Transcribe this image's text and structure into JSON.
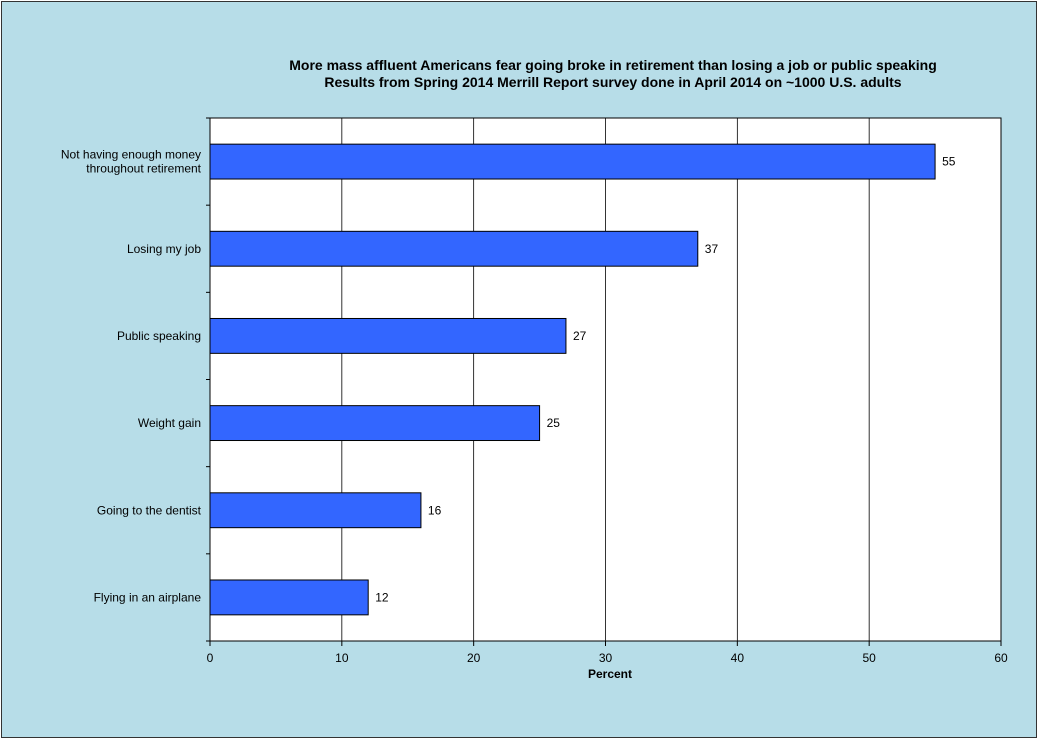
{
  "chart_data": {
    "type": "bar",
    "orientation": "horizontal",
    "title": "More mass affluent Americans fear going broke in retirement than losing a job or public speaking",
    "subtitle": "Results from Spring 2014 Merrill Report survey done  in April 2014 on ~1000 U.S. adults",
    "categories": [
      [
        "Not having enough money",
        "throughout retirement"
      ],
      [
        "Losing my job"
      ],
      [
        "Public speaking"
      ],
      [
        "Weight gain"
      ],
      [
        "Going to the dentist"
      ],
      [
        "Flying in an airplane"
      ]
    ],
    "values": [
      55,
      37,
      27,
      25,
      16,
      12
    ],
    "xlabel": "Percent",
    "ylabel": "",
    "xlim": [
      0,
      60
    ],
    "xticks": [
      0,
      10,
      20,
      30,
      40,
      50,
      60
    ],
    "grid": "vertical",
    "legend": "none",
    "colors": {
      "bar": "#3366ff",
      "bar_stroke": "#000000",
      "background": "#b7dde8",
      "plot_area": "#ffffff",
      "gridline": "#000000"
    }
  }
}
